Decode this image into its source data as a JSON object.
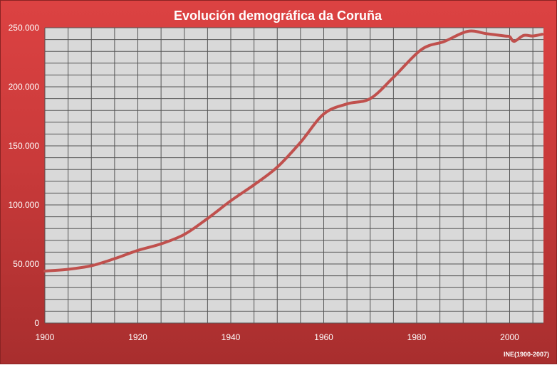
{
  "chart_data": {
    "type": "line",
    "title": "Evolución demográfica da Coruña",
    "source_note": "INE(1900-2007)",
    "xlabel": "",
    "ylabel": "",
    "xlim": [
      1900,
      2007
    ],
    "ylim": [
      0,
      250000
    ],
    "x_ticks": [
      "1900",
      "1920",
      "1940",
      "1960",
      "1980",
      "2000"
    ],
    "y_ticks": [
      "0",
      "50.000",
      "100.000",
      "150.000",
      "200.000",
      "250.000"
    ],
    "grid": true,
    "line_color": "#c0504d",
    "plot_background": "#d9d9d9",
    "series": [
      {
        "x": [
          1900,
          1905,
          1910,
          1915,
          1920,
          1925,
          1930,
          1935,
          1940,
          1945,
          1950,
          1955,
          1960,
          1965,
          1970,
          1975,
          1981,
          1986,
          1991,
          1995,
          1999,
          2000,
          2001,
          2003,
          2005,
          2007
        ],
        "y": [
          44000,
          45500,
          48500,
          54500,
          61500,
          67000,
          75000,
          88500,
          103500,
          117000,
          132000,
          153000,
          177000,
          185500,
          190000,
          208000,
          231500,
          238500,
          247000,
          245000,
          243000,
          242500,
          238500,
          243500,
          243000,
          244500
        ]
      }
    ]
  }
}
